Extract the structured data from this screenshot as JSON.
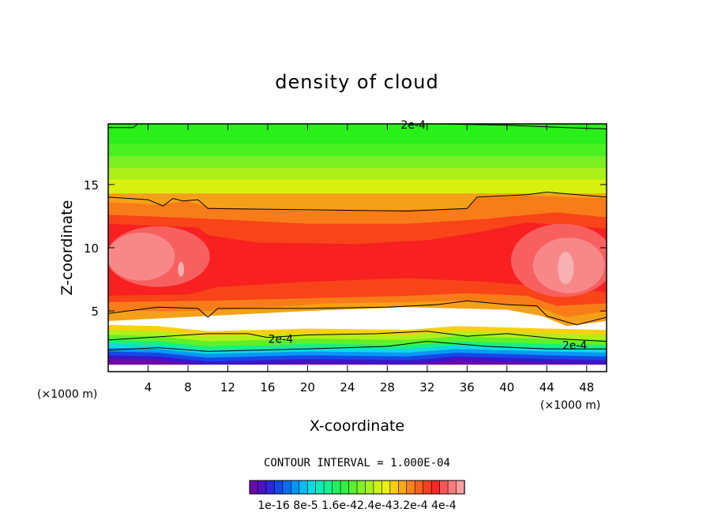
{
  "chart_data": {
    "type": "contour",
    "title": "density of cloud",
    "xlabel": "X-coordinate",
    "ylabel": "Z-coordinate",
    "x_unit_left": "(×1000 m)",
    "x_unit_right": "(×1000 m)",
    "xlim": [
      0,
      50
    ],
    "ylim": [
      0.2,
      19.8
    ],
    "xticks": [
      4,
      8,
      12,
      16,
      20,
      24,
      28,
      32,
      36,
      40,
      44,
      48
    ],
    "yticks": [
      5,
      10,
      15
    ],
    "contour_interval_text": "CONTOUR INTERVAL = 1.000E-04",
    "contour_labels": [
      {
        "text": "2e-4",
        "x": 30.6,
        "z": 19.75
      },
      {
        "text": "2e-4",
        "x": 17.3,
        "z": 2.8
      },
      {
        "text": "2e-4",
        "x": 46.8,
        "z": 2.3
      }
    ],
    "colorbar": {
      "tick_labels": [
        "1e-16",
        "8e-5",
        "1.6e-4",
        "2.4e-4",
        "3.2e-4",
        "4e-4"
      ],
      "tick_labels_printed": "1e-16 8e-5 1.6e-42.4e-43.2e-4 4e-4",
      "colors": [
        "#6a0aa8",
        "#4a14c0",
        "#2a28d8",
        "#1448e8",
        "#0c6cf0",
        "#0894f4",
        "#0cbcf0",
        "#10d8e0",
        "#14e8b8",
        "#18f090",
        "#20f060",
        "#30f040",
        "#58f030",
        "#80f028",
        "#a8f020",
        "#ccf018",
        "#ecf010",
        "#f8d010",
        "#f8a818",
        "#f88020",
        "#f86020",
        "#f84020",
        "#f82828",
        "#f85858",
        "#f87c7c",
        "#f8a0a0"
      ]
    },
    "grid": false
  }
}
